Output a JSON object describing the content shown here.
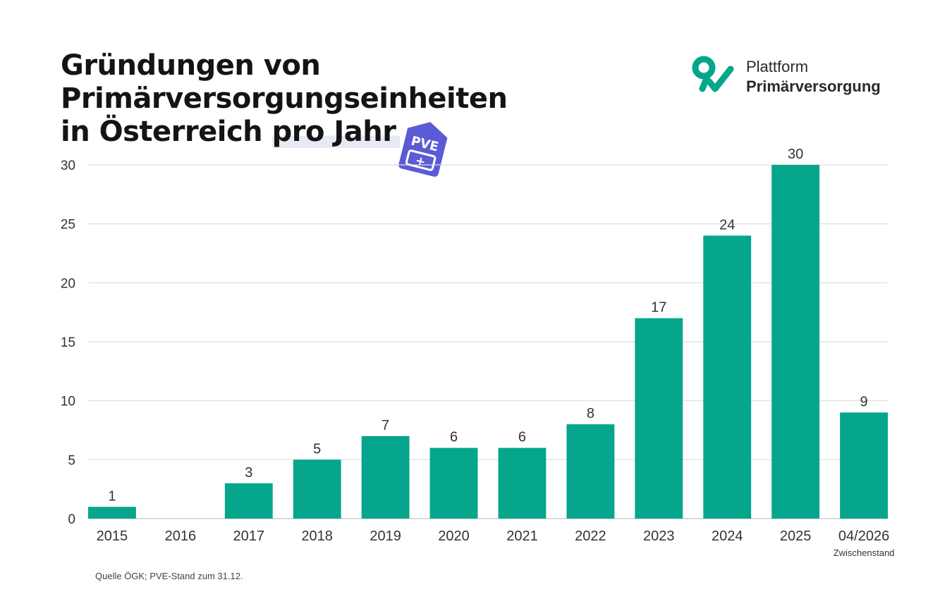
{
  "title": {
    "line1": "Gründungen von",
    "line2": "Primärversorgungseinheiten",
    "line3_a": "in Österreich ",
    "line3_b": "pro Jahr"
  },
  "badge": {
    "text": "PVE",
    "symbol": "+",
    "color": "#5b5bd6"
  },
  "logo": {
    "line1": "Plattform",
    "line2": "Primärversorgung",
    "color": "#05a68b"
  },
  "chart_data": {
    "type": "bar",
    "categories": [
      "2015",
      "2016",
      "2017",
      "2018",
      "2019",
      "2020",
      "2021",
      "2022",
      "2023",
      "2024",
      "2025",
      "04/2026"
    ],
    "values": [
      1,
      0,
      3,
      5,
      7,
      6,
      6,
      8,
      17,
      24,
      30,
      9
    ],
    "value_labels": [
      "1",
      "",
      "3",
      "5",
      "7",
      "6",
      "6",
      "8",
      "17",
      "24",
      "30",
      "9"
    ],
    "category_notes": [
      "",
      "",
      "",
      "",
      "",
      "",
      "",
      "",
      "",
      "",
      "",
      "Zwischenstand"
    ],
    "yticks": [
      0,
      5,
      10,
      15,
      20,
      25,
      30
    ],
    "ylim": [
      0,
      30
    ],
    "grid": true,
    "bar_color": "#05a68b",
    "title": "Gründungen von Primärversorgungseinheiten in Österreich pro Jahr",
    "xlabel": "",
    "ylabel": ""
  },
  "source": "Quelle ÖGK; PVE-Stand zum 31.12."
}
